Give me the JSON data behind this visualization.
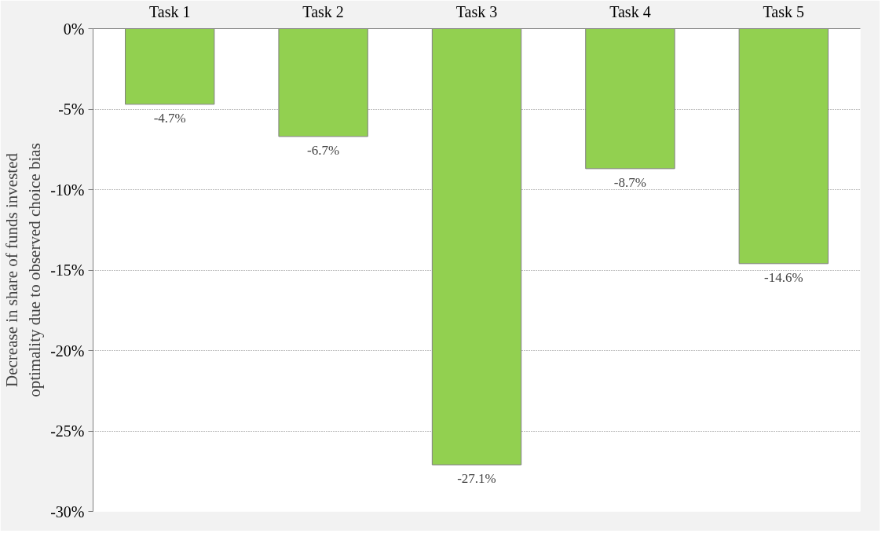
{
  "chart_data": {
    "type": "bar",
    "ylabel": "Decrease in share of funds invested\noptimality due to observed choice bias",
    "categories": [
      "Task 1",
      "Task 2",
      "Task 3",
      "Task 4",
      "Task 5"
    ],
    "values": [
      -4.7,
      -6.7,
      -27.1,
      -8.7,
      -14.6
    ],
    "value_labels": [
      "-4.7%",
      "-6.7%",
      "-27.1%",
      "-8.7%",
      "-14.6%"
    ],
    "color": "#92d050",
    "ylim": [
      -30,
      0
    ],
    "yticks": [
      {
        "value": 0,
        "label": "0%"
      },
      {
        "value": -5,
        "label": "-5%"
      },
      {
        "value": -10,
        "label": "-10%"
      },
      {
        "value": -15,
        "label": "-15%"
      },
      {
        "value": -20,
        "label": "-20%"
      },
      {
        "value": -25,
        "label": "-25%"
      },
      {
        "value": -30,
        "label": "-30%"
      }
    ],
    "grid": "y"
  }
}
